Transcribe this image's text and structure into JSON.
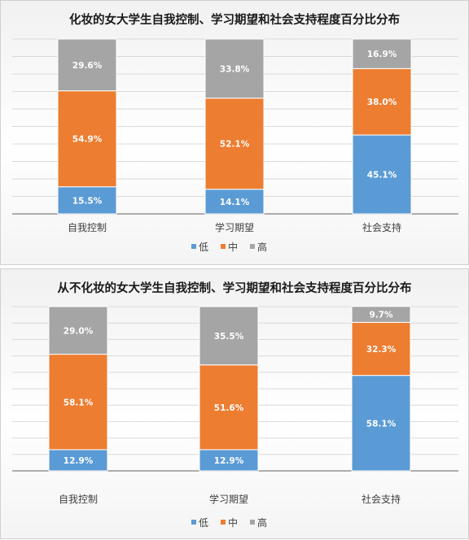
{
  "chart_data": [
    {
      "type": "bar",
      "stacked": true,
      "percent_stacked": true,
      "title": "化妆的女大学生自我控制、学习期望和社会支持程度百分比分布",
      "categories": [
        "自我控制",
        "学习期望",
        "社会支持"
      ],
      "series": [
        {
          "name": "低",
          "values": [
            15.5,
            14.1,
            45.1
          ],
          "labels": [
            "15.5%",
            "14.1%",
            "45.1%"
          ]
        },
        {
          "name": "中",
          "values": [
            54.9,
            52.1,
            38.0
          ],
          "labels": [
            "54.9%",
            "52.1%",
            "38.0%"
          ]
        },
        {
          "name": "高",
          "values": [
            29.6,
            33.8,
            16.9
          ],
          "labels": [
            "29.6%",
            "33.8%",
            "16.9%"
          ]
        }
      ],
      "ylim": [
        0,
        100
      ],
      "grid": true,
      "legend": "bottom"
    },
    {
      "type": "bar",
      "stacked": true,
      "percent_stacked": true,
      "title": "从不化妆的女大学生自我控制、学习期望和社会支持程度百分比分布",
      "categories": [
        "自我控制",
        "学习期望",
        "社会支持"
      ],
      "series": [
        {
          "name": "低",
          "values": [
            12.9,
            12.9,
            58.1
          ],
          "labels": [
            "12.9%",
            "12.9%",
            "58.1%"
          ]
        },
        {
          "name": "中",
          "values": [
            58.1,
            51.6,
            32.3
          ],
          "labels": [
            "58.1%",
            "51.6%",
            "32.3%"
          ]
        },
        {
          "name": "高",
          "values": [
            29.0,
            35.5,
            9.7
          ],
          "labels": [
            "29.0%",
            "35.5%",
            "9.7%"
          ]
        }
      ],
      "ylim": [
        0,
        100
      ],
      "grid": true,
      "legend": "bottom"
    }
  ],
  "colors": {
    "低": "#5b9bd5",
    "中": "#ed7d31",
    "高": "#a5a5a5"
  }
}
